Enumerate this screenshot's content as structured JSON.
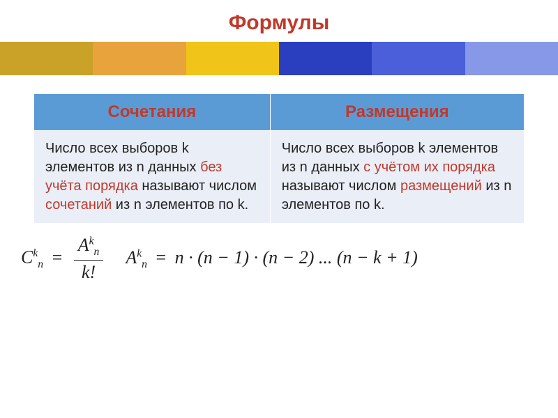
{
  "title": "Формулы",
  "title_color": "#c0392b",
  "banner": {
    "panels": [
      "#c9a227",
      "#e8a33d",
      "#f0c419",
      "#2a3fbf",
      "#4a5fd9",
      "#8898e8"
    ],
    "height": 48
  },
  "table": {
    "header_bg": "#5b9bd5",
    "cell_bg": "#eaeef7",
    "headers": [
      {
        "text": "Сочетания",
        "color": "#c0392b"
      },
      {
        "text": "Размещения",
        "color": "#c0392b"
      }
    ],
    "rows": [
      {
        "left_parts": [
          {
            "t": "Число всех выборов k элементов из n  данных ",
            "c": "#222"
          },
          {
            "t": "без учёта порядка",
            "c": "#c0392b"
          },
          {
            "t": " называют числом ",
            "c": "#222"
          },
          {
            "t": "сочетаний",
            "c": "#c0392b"
          },
          {
            "t": " из n элементов по k.",
            "c": "#222"
          }
        ],
        "right_parts": [
          {
            "t": "Число всех выборов k элементов из n  данных ",
            "c": "#222"
          },
          {
            "t": "с  учётом их порядка",
            "c": "#c0392b"
          },
          {
            "t": " называют числом ",
            "c": "#222"
          },
          {
            "t": "размещений",
            "c": "#c0392b"
          },
          {
            "t": " из n элементов по k.",
            "c": "#222"
          }
        ]
      }
    ]
  },
  "formula1": {
    "C": "C",
    "k": "k",
    "n": "n",
    "eq": "=",
    "A": "A",
    "kfact": "k!"
  },
  "formula2": {
    "A": "A",
    "k": "k",
    "n": "n",
    "eq": "=",
    "rhs": "n · (n − 1) · (n − 2) ... (n − k + 1)"
  }
}
